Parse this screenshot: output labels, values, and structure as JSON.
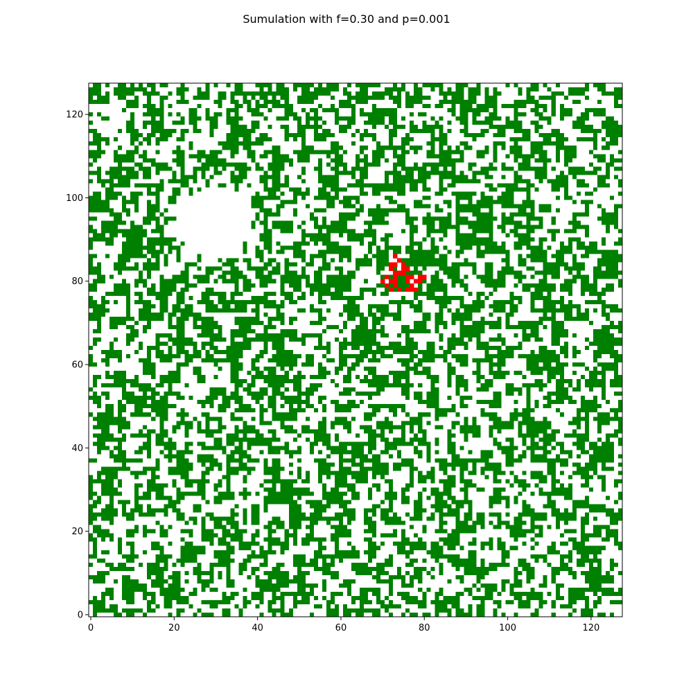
{
  "chart_data": {
    "type": "heatmap",
    "title": "Sumulation with f=0.30 and p=0.001",
    "grid_size": [
      128,
      128
    ],
    "xlim": [
      -0.5,
      127.5
    ],
    "ylim": [
      -0.5,
      127.5
    ],
    "x_ticks": [
      0,
      20,
      40,
      60,
      80,
      100,
      120
    ],
    "y_ticks": [
      0,
      20,
      40,
      60,
      80,
      100,
      120
    ],
    "x_tick_labels": [
      "0",
      "20",
      "40",
      "60",
      "80",
      "100",
      "120"
    ],
    "y_tick_labels": [
      "0",
      "20",
      "40",
      "60",
      "80",
      "100",
      "120"
    ],
    "grid": false,
    "legend": "none",
    "states": [
      {
        "value": 0,
        "label": "empty",
        "color": "#ffffff"
      },
      {
        "value": 1,
        "label": "tree",
        "color": "#008000"
      },
      {
        "value": 2,
        "label": "burning",
        "color": "#ff0000"
      }
    ],
    "tree_density_approx": 0.5,
    "empty_regions": [
      {
        "x_range": [
          19,
          40
        ],
        "y_range": [
          84,
          104
        ],
        "description": "large cleared area upper-left"
      }
    ],
    "burning_cells": [
      [
        73,
        86
      ],
      [
        74,
        85
      ],
      [
        72,
        84
      ],
      [
        73,
        84
      ],
      [
        75,
        84
      ],
      [
        72,
        83
      ],
      [
        75,
        83
      ],
      [
        76,
        83
      ],
      [
        73,
        82
      ],
      [
        74,
        82
      ],
      [
        75,
        82
      ],
      [
        71,
        81
      ],
      [
        73,
        81
      ],
      [
        76,
        81
      ],
      [
        77,
        81
      ],
      [
        79,
        81
      ],
      [
        80,
        81
      ],
      [
        70,
        80
      ],
      [
        72,
        80
      ],
      [
        73,
        80
      ],
      [
        76,
        80
      ],
      [
        78,
        80
      ],
      [
        79,
        80
      ],
      [
        71,
        79
      ],
      [
        73,
        79
      ],
      [
        77,
        79
      ],
      [
        72,
        78
      ],
      [
        74,
        78
      ],
      [
        76,
        78
      ],
      [
        77,
        78
      ],
      [
        78,
        78
      ]
    ]
  }
}
